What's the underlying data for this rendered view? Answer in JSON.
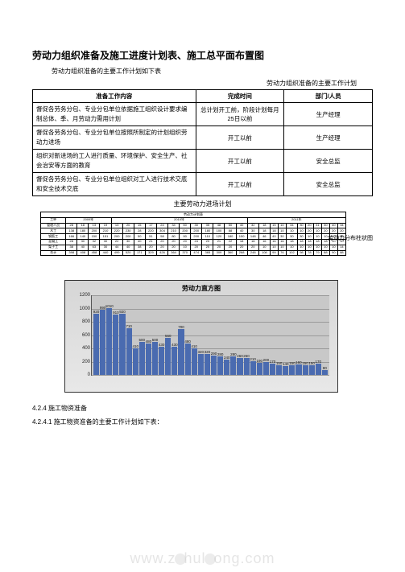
{
  "title": "劳动力组织准备及施工进度计划表、施工总平面布置图",
  "subtitle": "劳动力组织准备的主要工作计划如下表",
  "table1": {
    "caption": "劳动力组织准备的主要工作计划",
    "headers": [
      "准备工作内容",
      "完成时间",
      "部门/人员"
    ],
    "rows": [
      {
        "c0": "督促各劳务分包、专业分包单位依据施工组织设计要求编制总体、季、月劳动力需用计划",
        "c1": "总计划开工前，阶段计划每月25日以前",
        "c2": "生产经理"
      },
      {
        "c0": "督促各劳务分包、专业分包单位按照所制定的计划组织劳动力进场",
        "c1": "开工以前",
        "c2": "生产经理"
      },
      {
        "c0": "组织对新进场的工人进行质量、环境保护、安全生产、社会治安等方面的教育",
        "c1": "开工以前",
        "c2": "安全总监"
      },
      {
        "c0": "督促各劳务分包、专业分包单位组织对工人进行技术交底和安全技术交底",
        "c1": "开工以前",
        "c2": "安全总监"
      }
    ]
  },
  "table2": {
    "caption": "主要劳动力进场计划",
    "title_row": "劳动力计划表",
    "years": [
      "2009年",
      "2010年",
      "2011年"
    ],
    "col0": "工种",
    "row_labels": [
      "管理人员",
      "木工",
      "钢筋工",
      "混凝土",
      "架子工",
      "合计"
    ],
    "values": [
      [
        28,
        18,
        13,
        19,
        13,
        20,
        15,
        17,
        24,
        34,
        50,
        30,
        35,
        48,
        50,
        40,
        32,
        18,
        15,
        10,
        34,
        30,
        20,
        31,
        30,
        40,
        34
      ],
      [
        138,
        180,
        200,
        210,
        220,
        230,
        28,
        220,
        304,
        210,
        200,
        200,
        180,
        100,
        88,
        40,
        30,
        18,
        18,
        10,
        10,
        10,
        20,
        10,
        20,
        20,
        20
      ],
      [
        166,
        140,
        150,
        151,
        200,
        200,
        50,
        51,
        58,
        80,
        90,
        200,
        110,
        120,
        180,
        150,
        148,
        46,
        40,
        30,
        30,
        30,
        10,
        10,
        10,
        10,
        10
      ],
      [
        28,
        30,
        32,
        30,
        22,
        30,
        40,
        21,
        20,
        20,
        20,
        24,
        20,
        21,
        22,
        18,
        18,
        16,
        16,
        16,
        18,
        18,
        18,
        18,
        18,
        10,
        10
      ],
      [
        38,
        40,
        63,
        30,
        44,
        40,
        38,
        20,
        20,
        20,
        10,
        20,
        20,
        20,
        20,
        20,
        20,
        10,
        10,
        10,
        10,
        10,
        10,
        10,
        10,
        10,
        14
      ],
      [
        398,
        408,
        458,
        440,
        499,
        520,
        171,
        329,
        426,
        364,
        370,
        474,
        365,
        309,
        360,
        268,
        248,
        108,
        99,
        76,
        102,
        98,
        78,
        79,
        88,
        90,
        88
      ]
    ],
    "side_label": "劳动力分布柱状图"
  },
  "chart": {
    "title": "劳动力直方图",
    "type": "bar",
    "ylim": [
      0,
      1200
    ],
    "ytick_step": 200,
    "yticks": [
      0,
      200,
      400,
      600,
      800,
      1000,
      1200
    ],
    "grid_color": "#999999",
    "background_color": "#c8c8c8",
    "bar_color": "#4a6bb0",
    "categories": [
      "1",
      "2",
      "3",
      "4",
      "5",
      "6",
      "7",
      "8",
      "9",
      "10",
      "11",
      "12",
      "13",
      "14",
      "15",
      "16",
      "17",
      "18",
      "19",
      "20",
      "21",
      "22",
      "23",
      "24",
      "25",
      "26",
      "27",
      "28",
      "29",
      "30",
      "31",
      "32",
      "33",
      "34",
      "35",
      "36"
    ],
    "values": [
      920,
      990,
      1010,
      910,
      920,
      710,
      410,
      500,
      480,
      500,
      430,
      560,
      430,
      700,
      480,
      410,
      320,
      320,
      290,
      280,
      240,
      280,
      260,
      260,
      210,
      190,
      200,
      170,
      150,
      140,
      150,
      160,
      150,
      150,
      170,
      80
    ]
  },
  "sections": {
    "s1": "4.2.4 施工物资准备",
    "s2": "4.2.4.1 施工物资准备的主要工作计划如下表："
  },
  "watermark": "www.zhulong.com"
}
